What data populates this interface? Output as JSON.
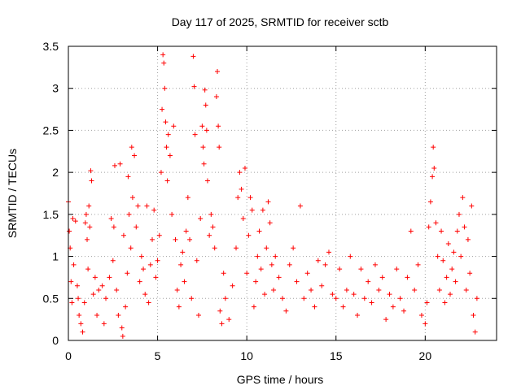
{
  "chart_data": {
    "type": "scatter",
    "title": "Day 117 of 2025, SRMTID for receiver sctb",
    "xlabel": "GPS time / hours",
    "ylabel": "SRMTID / TECUs",
    "xlim": [
      0,
      24
    ],
    "ylim": [
      0,
      3.5
    ],
    "x_ticks": [
      0,
      5,
      10,
      15,
      20
    ],
    "x_tick_labels": [
      "0",
      "5",
      "10",
      "15",
      "20"
    ],
    "y_ticks": [
      0,
      0.5,
      1,
      1.5,
      2,
      2.5,
      3,
      3.5
    ],
    "y_tick_labels": [
      "0",
      "0.5",
      "1",
      "1.5",
      "2",
      "2.5",
      "3",
      "3.5"
    ],
    "grid": true,
    "marker": "+",
    "color": "#ff0000",
    "series": [
      {
        "name": "SRMTID",
        "points": [
          [
            0.0,
            1.65
          ],
          [
            0.05,
            1.3
          ],
          [
            0.1,
            1.1
          ],
          [
            0.15,
            0.7
          ],
          [
            0.2,
            0.45
          ],
          [
            0.25,
            1.45
          ],
          [
            0.3,
            0.9
          ],
          [
            0.4,
            1.42
          ],
          [
            0.5,
            0.65
          ],
          [
            0.55,
            0.5
          ],
          [
            0.6,
            0.3
          ],
          [
            0.7,
            0.2
          ],
          [
            0.8,
            0.1
          ],
          [
            0.9,
            0.45
          ],
          [
            0.95,
            1.4
          ],
          [
            1.0,
            1.5
          ],
          [
            1.05,
            1.2
          ],
          [
            1.1,
            0.85
          ],
          [
            1.15,
            1.6
          ],
          [
            1.2,
            1.35
          ],
          [
            1.25,
            2.02
          ],
          [
            1.3,
            1.9
          ],
          [
            1.4,
            0.55
          ],
          [
            1.5,
            0.75
          ],
          [
            1.6,
            0.3
          ],
          [
            1.7,
            0.6
          ],
          [
            1.9,
            0.65
          ],
          [
            2.0,
            0.2
          ],
          [
            2.1,
            0.5
          ],
          [
            2.3,
            0.75
          ],
          [
            2.4,
            1.45
          ],
          [
            2.5,
            0.95
          ],
          [
            2.55,
            1.35
          ],
          [
            2.6,
            2.08
          ],
          [
            2.7,
            0.6
          ],
          [
            2.8,
            0.3
          ],
          [
            2.9,
            2.1
          ],
          [
            3.0,
            0.15
          ],
          [
            3.05,
            0.05
          ],
          [
            3.1,
            1.25
          ],
          [
            3.2,
            0.4
          ],
          [
            3.3,
            0.8
          ],
          [
            3.35,
            1.95
          ],
          [
            3.4,
            1.5
          ],
          [
            3.5,
            1.1
          ],
          [
            3.55,
            2.3
          ],
          [
            3.6,
            1.7
          ],
          [
            3.7,
            2.2
          ],
          [
            3.8,
            1.35
          ],
          [
            3.9,
            1.6
          ],
          [
            4.0,
            0.7
          ],
          [
            4.1,
            1.0
          ],
          [
            4.2,
            0.85
          ],
          [
            4.3,
            0.55
          ],
          [
            4.4,
            1.6
          ],
          [
            4.5,
            0.45
          ],
          [
            4.6,
            0.9
          ],
          [
            4.7,
            1.2
          ],
          [
            4.8,
            1.55
          ],
          [
            4.9,
            0.75
          ],
          [
            5.0,
            0.95
          ],
          [
            5.1,
            1.25
          ],
          [
            5.2,
            2.0
          ],
          [
            5.25,
            2.75
          ],
          [
            5.3,
            3.4
          ],
          [
            5.35,
            3.3
          ],
          [
            5.4,
            3.0
          ],
          [
            5.45,
            2.6
          ],
          [
            5.5,
            2.3
          ],
          [
            5.55,
            1.9
          ],
          [
            5.6,
            2.45
          ],
          [
            5.7,
            2.2
          ],
          [
            5.8,
            1.5
          ],
          [
            5.9,
            2.55
          ],
          [
            6.0,
            1.2
          ],
          [
            6.1,
            0.6
          ],
          [
            6.2,
            0.4
          ],
          [
            6.3,
            0.9
          ],
          [
            6.4,
            1.05
          ],
          [
            6.5,
            0.7
          ],
          [
            6.6,
            1.3
          ],
          [
            6.7,
            1.7
          ],
          [
            6.8,
            1.2
          ],
          [
            6.9,
            0.5
          ],
          [
            7.0,
            3.38
          ],
          [
            7.05,
            3.02
          ],
          [
            7.1,
            2.45
          ],
          [
            7.2,
            0.95
          ],
          [
            7.3,
            0.3
          ],
          [
            7.4,
            1.45
          ],
          [
            7.5,
            2.55
          ],
          [
            7.55,
            2.3
          ],
          [
            7.6,
            2.1
          ],
          [
            7.65,
            2.98
          ],
          [
            7.7,
            2.8
          ],
          [
            7.75,
            2.5
          ],
          [
            7.8,
            1.9
          ],
          [
            7.9,
            1.25
          ],
          [
            8.0,
            1.5
          ],
          [
            8.1,
            1.35
          ],
          [
            8.2,
            1.1
          ],
          [
            8.3,
            2.9
          ],
          [
            8.35,
            3.2
          ],
          [
            8.4,
            2.55
          ],
          [
            8.45,
            2.3
          ],
          [
            8.5,
            0.35
          ],
          [
            8.6,
            0.2
          ],
          [
            8.7,
            0.8
          ],
          [
            8.8,
            0.5
          ],
          [
            9.0,
            0.25
          ],
          [
            9.2,
            0.65
          ],
          [
            9.4,
            1.1
          ],
          [
            9.5,
            1.7
          ],
          [
            9.6,
            2.0
          ],
          [
            9.7,
            1.8
          ],
          [
            9.8,
            1.45
          ],
          [
            9.9,
            2.05
          ],
          [
            10.0,
            0.8
          ],
          [
            10.1,
            1.25
          ],
          [
            10.2,
            1.7
          ],
          [
            10.3,
            1.55
          ],
          [
            10.4,
            0.4
          ],
          [
            10.5,
            0.7
          ],
          [
            10.6,
            1.0
          ],
          [
            10.7,
            1.3
          ],
          [
            10.8,
            0.85
          ],
          [
            10.9,
            1.55
          ],
          [
            11.0,
            0.55
          ],
          [
            11.1,
            1.1
          ],
          [
            11.2,
            1.65
          ],
          [
            11.3,
            1.4
          ],
          [
            11.4,
            0.9
          ],
          [
            11.5,
            0.6
          ],
          [
            11.6,
            1.0
          ],
          [
            11.8,
            0.75
          ],
          [
            12.0,
            0.5
          ],
          [
            12.2,
            0.35
          ],
          [
            12.4,
            0.9
          ],
          [
            12.6,
            1.1
          ],
          [
            12.8,
            0.7
          ],
          [
            13.0,
            1.6
          ],
          [
            13.2,
            0.5
          ],
          [
            13.4,
            0.8
          ],
          [
            13.6,
            0.6
          ],
          [
            13.8,
            0.4
          ],
          [
            14.0,
            0.95
          ],
          [
            14.2,
            0.65
          ],
          [
            14.4,
            0.9
          ],
          [
            14.6,
            1.05
          ],
          [
            14.8,
            0.55
          ],
          [
            15.0,
            0.5
          ],
          [
            15.2,
            0.85
          ],
          [
            15.4,
            0.4
          ],
          [
            15.6,
            0.6
          ],
          [
            15.8,
            1.0
          ],
          [
            16.0,
            0.55
          ],
          [
            16.2,
            0.3
          ],
          [
            16.4,
            0.85
          ],
          [
            16.6,
            0.5
          ],
          [
            16.8,
            0.7
          ],
          [
            17.0,
            0.45
          ],
          [
            17.2,
            0.9
          ],
          [
            17.4,
            0.6
          ],
          [
            17.6,
            0.75
          ],
          [
            17.8,
            0.25
          ],
          [
            18.0,
            0.55
          ],
          [
            18.2,
            0.4
          ],
          [
            18.4,
            0.85
          ],
          [
            18.6,
            0.5
          ],
          [
            18.8,
            0.35
          ],
          [
            19.0,
            0.75
          ],
          [
            19.2,
            1.3
          ],
          [
            19.4,
            0.6
          ],
          [
            19.6,
            0.9
          ],
          [
            19.8,
            0.3
          ],
          [
            20.0,
            0.2
          ],
          [
            20.1,
            0.45
          ],
          [
            20.2,
            1.35
          ],
          [
            20.3,
            1.65
          ],
          [
            20.4,
            1.95
          ],
          [
            20.45,
            2.3
          ],
          [
            20.5,
            2.05
          ],
          [
            20.6,
            1.4
          ],
          [
            20.7,
            1.0
          ],
          [
            20.8,
            0.6
          ],
          [
            20.9,
            1.3
          ],
          [
            21.0,
            0.95
          ],
          [
            21.1,
            0.45
          ],
          [
            21.2,
            0.75
          ],
          [
            21.3,
            1.15
          ],
          [
            21.4,
            0.55
          ],
          [
            21.5,
            0.85
          ],
          [
            21.6,
            1.05
          ],
          [
            21.7,
            0.7
          ],
          [
            21.8,
            1.3
          ],
          [
            21.9,
            1.5
          ],
          [
            22.0,
            1.0
          ],
          [
            22.1,
            1.7
          ],
          [
            22.2,
            1.35
          ],
          [
            22.3,
            0.6
          ],
          [
            22.4,
            1.2
          ],
          [
            22.5,
            0.8
          ],
          [
            22.6,
            1.6
          ],
          [
            22.7,
            0.3
          ],
          [
            22.8,
            0.1
          ],
          [
            22.9,
            0.5
          ]
        ]
      }
    ]
  }
}
